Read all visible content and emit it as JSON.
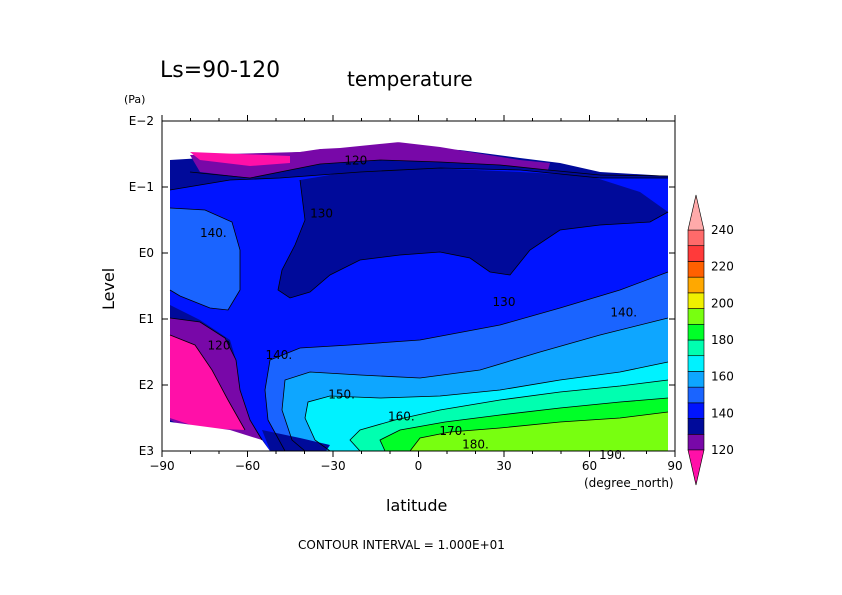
{
  "figure": {
    "season_label": "Ls=90-120",
    "title": "temperature",
    "footer": "CONTOUR INTERVAL = 1.000E+01"
  },
  "chart_data": {
    "type": "heatmap",
    "title": "temperature",
    "subtitle": "Ls=90-120",
    "xlabel": "latitude",
    "x_unit": "(degree_north)",
    "ylabel": "Level",
    "y_unit": "(Pa)",
    "xlim": [
      -90,
      90
    ],
    "x_ticks": [
      -90,
      -60,
      -30,
      0,
      30,
      60,
      90
    ],
    "x_tick_labels": [
      "−90",
      "−60",
      "−30",
      "0",
      "30",
      "60",
      "90"
    ],
    "y_scale": "log",
    "y_reversed": true,
    "ylim": [
      1000,
      0.01
    ],
    "y_ticks": [
      0.01,
      0.1,
      1,
      10,
      100,
      1000
    ],
    "y_tick_labels": [
      "E−2",
      "E−1",
      "E0",
      "E1",
      "E2",
      "E3"
    ],
    "contour_interval": 10,
    "contour_labels": [
      {
        "text": "120",
        "lat": -22,
        "p": 0.04
      },
      {
        "text": "130",
        "lat": -34,
        "p": 0.25
      },
      {
        "text": "140.",
        "lat": -72,
        "p": 0.5
      },
      {
        "text": "130",
        "lat": 30,
        "p": 5.5
      },
      {
        "text": "140.",
        "lat": 72,
        "p": 8
      },
      {
        "text": "120",
        "lat": -70,
        "p": 25
      },
      {
        "text": "140.",
        "lat": -49,
        "p": 35
      },
      {
        "text": "150.",
        "lat": -27,
        "p": 140
      },
      {
        "text": "160.",
        "lat": -6,
        "p": 300
      },
      {
        "text": "170.",
        "lat": 12,
        "p": 500
      },
      {
        "text": "180.",
        "lat": 20,
        "p": 800
      },
      {
        "text": "190.",
        "lat": 68,
        "p": 1150
      }
    ],
    "colorbar": {
      "levels": [
        110,
        120,
        130,
        140,
        150,
        160,
        170,
        180,
        190,
        200,
        210,
        220,
        230,
        240,
        250
      ],
      "labels": [
        "120",
        "140",
        "160",
        "180",
        "200",
        "220",
        "240"
      ],
      "label_values": [
        120,
        140,
        160,
        180,
        200,
        220,
        240
      ],
      "colors": [
        "#ff10a8",
        "#7808a8",
        "#000a9a",
        "#0014ff",
        "#1a64ff",
        "#0ea6ff",
        "#00f2ff",
        "#00ffb0",
        "#00ff28",
        "#78ff10",
        "#f0f000",
        "#ffa800",
        "#ff6000",
        "#ff3a3a",
        "#ff6a6a",
        "#ffaaaa"
      ]
    },
    "grid": false,
    "legend": "right colorbar"
  }
}
